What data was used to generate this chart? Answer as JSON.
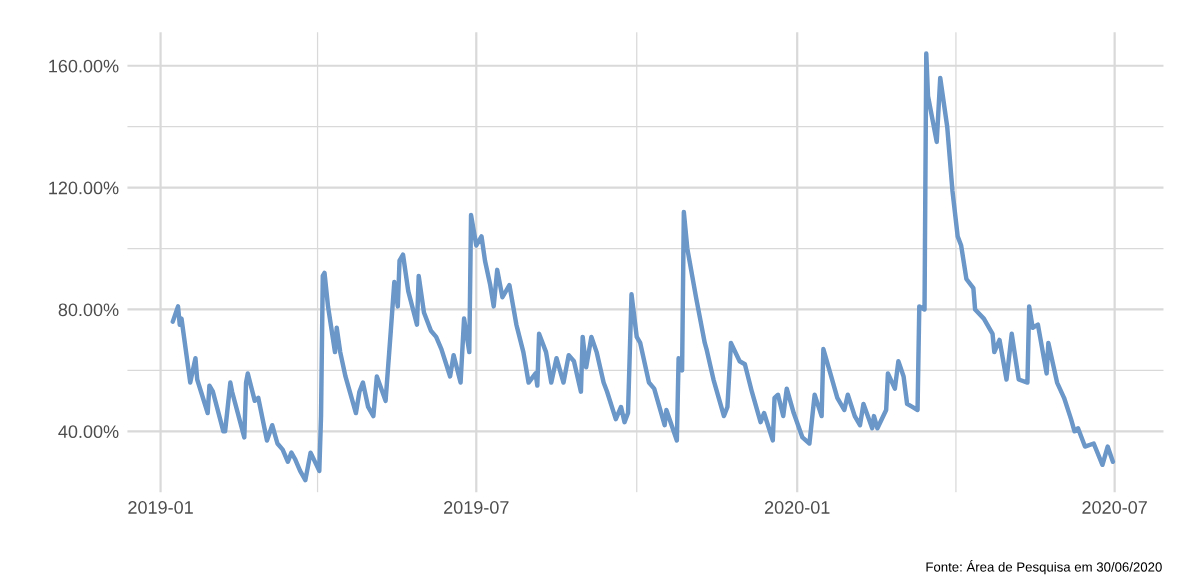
{
  "chart_data": {
    "type": "line",
    "x": [
      "2019-01-08",
      "2019-01-11",
      "2019-01-12",
      "2019-01-13",
      "2019-01-18",
      "2019-01-21",
      "2019-01-22",
      "2019-01-28",
      "2019-01-29",
      "2019-01-31",
      "2019-02-06",
      "2019-02-07",
      "2019-02-10",
      "2019-02-11",
      "2019-02-18",
      "2019-02-19",
      "2019-02-20",
      "2019-02-24",
      "2019-02-26",
      "2019-03-03",
      "2019-03-06",
      "2019-03-09",
      "2019-03-12",
      "2019-03-15",
      "2019-03-17",
      "2019-03-19",
      "2019-03-22",
      "2019-03-25",
      "2019-03-28",
      "2019-04-02",
      "2019-04-03",
      "2019-04-04",
      "2019-04-05",
      "2019-04-07",
      "2019-04-11",
      "2019-04-12",
      "2019-04-14",
      "2019-04-17",
      "2019-04-23",
      "2019-04-25",
      "2019-04-27",
      "2019-04-30",
      "2019-05-03",
      "2019-05-05",
      "2019-05-10",
      "2019-05-13",
      "2019-05-15",
      "2019-05-17",
      "2019-05-18",
      "2019-05-20",
      "2019-05-23",
      "2019-05-28",
      "2019-05-29",
      "2019-06-01",
      "2019-06-05",
      "2019-06-08",
      "2019-06-11",
      "2019-06-16",
      "2019-06-18",
      "2019-06-22",
      "2019-06-24",
      "2019-06-27",
      "2019-06-28",
      "2019-07-01",
      "2019-07-04",
      "2019-07-06",
      "2019-07-09",
      "2019-07-11",
      "2019-07-13",
      "2019-07-16",
      "2019-07-20",
      "2019-07-24",
      "2019-07-28",
      "2019-07-31",
      "2019-08-04",
      "2019-08-05",
      "2019-08-06",
      "2019-08-10",
      "2019-08-13",
      "2019-08-16",
      "2019-08-20",
      "2019-08-23",
      "2019-08-26",
      "2019-08-30",
      "2019-08-31",
      "2019-09-02",
      "2019-09-05",
      "2019-09-08",
      "2019-09-12",
      "2019-09-14",
      "2019-09-19",
      "2019-09-22",
      "2019-09-24",
      "2019-09-26",
      "2019-09-28",
      "2019-10-01",
      "2019-10-03",
      "2019-10-08",
      "2019-10-11",
      "2019-10-17",
      "2019-10-18",
      "2019-10-24",
      "2019-10-25",
      "2019-10-27",
      "2019-10-28",
      "2019-10-30",
      "2019-11-04",
      "2019-11-09",
      "2019-11-10",
      "2019-11-14",
      "2019-11-20",
      "2019-11-22",
      "2019-11-24",
      "2019-11-29",
      "2019-12-02",
      "2019-12-06",
      "2019-12-11",
      "2019-12-13",
      "2019-12-18",
      "2019-12-19",
      "2019-12-21",
      "2019-12-24",
      "2019-12-26",
      "2019-12-30",
      "2020-01-04",
      "2020-01-08",
      "2020-01-11",
      "2020-01-15",
      "2020-01-16",
      "2020-01-20",
      "2020-01-24",
      "2020-01-28",
      "2020-01-30",
      "2020-02-03",
      "2020-02-06",
      "2020-02-08",
      "2020-02-13",
      "2020-02-14",
      "2020-02-16",
      "2020-02-21",
      "2020-02-22",
      "2020-02-26",
      "2020-02-28",
      "2020-03-02",
      "2020-03-04",
      "2020-03-07",
      "2020-03-10",
      "2020-03-11",
      "2020-03-14",
      "2020-03-15",
      "2020-03-16",
      "2020-03-21",
      "2020-03-23",
      "2020-03-27",
      "2020-03-30",
      "2020-04-02",
      "2020-04-04",
      "2020-04-07",
      "2020-04-11",
      "2020-04-12",
      "2020-04-17",
      "2020-04-22",
      "2020-04-23",
      "2020-04-26",
      "2020-04-30",
      "2020-05-03",
      "2020-05-07",
      "2020-05-12",
      "2020-05-13",
      "2020-05-15",
      "2020-05-18",
      "2020-05-23",
      "2020-05-24",
      "2020-05-29",
      "2020-06-02",
      "2020-06-06",
      "2020-06-08",
      "2020-06-10",
      "2020-06-14",
      "2020-06-19",
      "2020-06-24",
      "2020-06-27",
      "2020-06-30"
    ],
    "values": [
      76,
      81,
      75,
      77,
      56,
      64,
      57,
      46,
      55,
      53,
      40,
      40,
      56,
      53,
      38,
      56,
      59,
      50,
      51,
      37,
      42,
      36,
      34,
      30,
      33,
      31,
      27,
      24,
      33,
      27,
      45,
      91,
      92,
      81,
      66,
      74,
      66,
      58,
      46,
      53,
      56,
      48,
      45,
      58,
      50,
      73,
      89,
      81,
      96,
      98,
      86,
      75,
      91,
      79,
      73,
      71,
      67,
      58,
      65,
      56,
      77,
      66,
      111,
      101,
      104,
      96,
      88,
      81,
      93,
      84,
      88,
      75,
      66,
      56,
      59,
      55,
      72,
      66,
      56,
      64,
      56,
      65,
      63,
      53,
      71,
      61,
      71,
      66,
      56,
      53,
      44,
      48,
      43,
      46,
      85,
      71,
      69,
      56,
      54,
      42,
      47,
      37,
      64,
      60,
      112,
      100,
      84,
      69,
      67,
      57,
      45,
      48,
      69,
      63,
      62,
      53,
      43,
      46,
      37,
      51,
      52,
      45,
      54,
      46,
      38,
      36,
      52,
      45,
      67,
      59,
      51,
      47,
      52,
      45,
      42,
      49,
      41,
      45,
      41,
      47,
      59,
      54,
      63,
      58,
      49,
      48,
      47,
      81,
      80,
      164,
      150,
      135,
      156,
      140,
      119,
      104,
      101,
      90,
      87,
      80,
      77,
      72,
      66,
      70,
      57,
      72,
      57,
      56,
      81,
      74,
      75,
      59,
      69,
      56,
      51,
      44,
      40,
      41,
      35,
      36,
      29,
      35,
      30
    ],
    "color": "#6a96c8",
    "xlim": [
      "2018-12-13",
      "2020-07-29"
    ],
    "xticks": [
      {
        "value": "2019-01",
        "label": "2019-01"
      },
      {
        "value": "2019-04",
        "label": null
      },
      {
        "value": "2019-07",
        "label": "2019-07"
      },
      {
        "value": "2019-10",
        "label": null
      },
      {
        "value": "2020-01",
        "label": "2020-01"
      },
      {
        "value": "2020-04",
        "label": null
      },
      {
        "value": "2020-07",
        "label": "2020-07"
      }
    ],
    "ylim": [
      20,
      171
    ],
    "yticks": [
      {
        "value": 40,
        "label": "40.00%"
      },
      {
        "value": 60,
        "label": null
      },
      {
        "value": 80,
        "label": "80.00%"
      },
      {
        "value": 100,
        "label": null
      },
      {
        "value": 120,
        "label": "120.00%"
      },
      {
        "value": 140,
        "label": null
      },
      {
        "value": 160,
        "label": "160.00%"
      }
    ],
    "grid": true,
    "line_style": "solid",
    "annotations": [
      "Fonte: Área de Pesquisa em 30/06/2020"
    ]
  }
}
